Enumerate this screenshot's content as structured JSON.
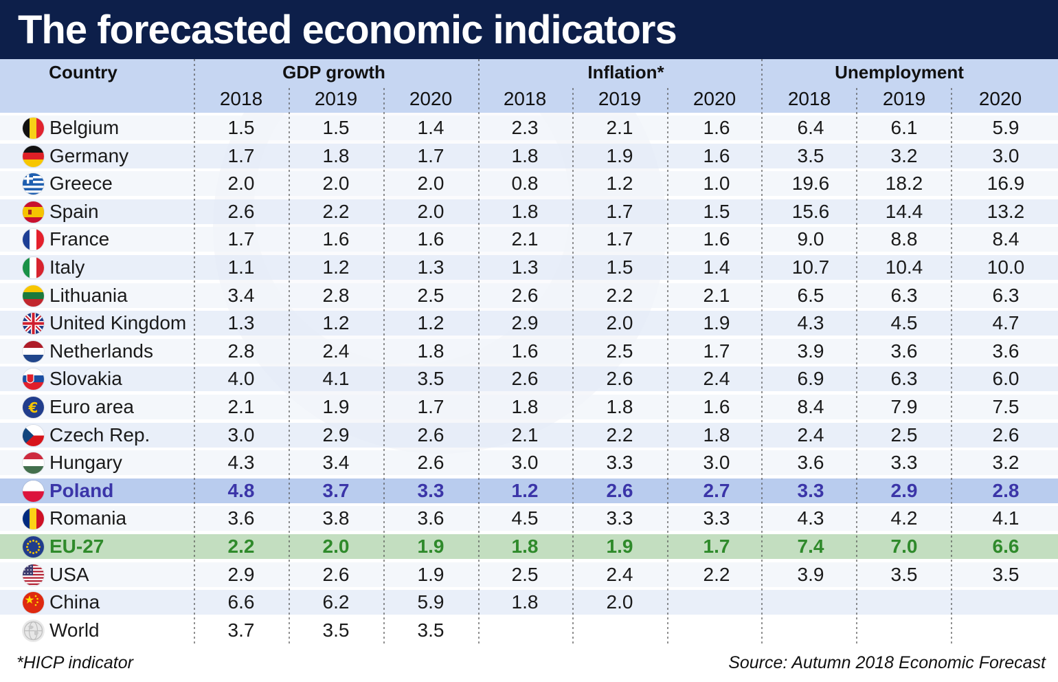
{
  "title": "The forecasted economic indicators",
  "chart_data": {
    "type": "table",
    "header": {
      "country_label": "Country",
      "groups": [
        {
          "label": "GDP growth",
          "years": [
            "2018",
            "2019",
            "2020"
          ]
        },
        {
          "label": "Inflation*",
          "years": [
            "2018",
            "2019",
            "2020"
          ]
        },
        {
          "label": "Unemployment",
          "years": [
            "2018",
            "2019",
            "2020"
          ]
        }
      ]
    },
    "rows": [
      {
        "country": "Belgium",
        "flag": "belgium-flag-icon",
        "values": [
          "1.5",
          "1.5",
          "1.4",
          "2.3",
          "2.1",
          "1.6",
          "6.4",
          "6.1",
          "5.9"
        ]
      },
      {
        "country": "Germany",
        "flag": "germany-flag-icon",
        "values": [
          "1.7",
          "1.8",
          "1.7",
          "1.8",
          "1.9",
          "1.6",
          "3.5",
          "3.2",
          "3.0"
        ]
      },
      {
        "country": "Greece",
        "flag": "greece-flag-icon",
        "values": [
          "2.0",
          "2.0",
          "2.0",
          "0.8",
          "1.2",
          "1.0",
          "19.6",
          "18.2",
          "16.9"
        ]
      },
      {
        "country": "Spain",
        "flag": "spain-flag-icon",
        "values": [
          "2.6",
          "2.2",
          "2.0",
          "1.8",
          "1.7",
          "1.5",
          "15.6",
          "14.4",
          "13.2"
        ]
      },
      {
        "country": "France",
        "flag": "france-flag-icon",
        "values": [
          "1.7",
          "1.6",
          "1.6",
          "2.1",
          "1.7",
          "1.6",
          "9.0",
          "8.8",
          "8.4"
        ]
      },
      {
        "country": "Italy",
        "flag": "italy-flag-icon",
        "values": [
          "1.1",
          "1.2",
          "1.3",
          "1.3",
          "1.5",
          "1.4",
          "10.7",
          "10.4",
          "10.0"
        ]
      },
      {
        "country": "Lithuania",
        "flag": "lithuania-flag-icon",
        "values": [
          "3.4",
          "2.8",
          "2.5",
          "2.6",
          "2.2",
          "2.1",
          "6.5",
          "6.3",
          "6.3"
        ]
      },
      {
        "country": "United Kingdom",
        "flag": "uk-flag-icon",
        "values": [
          "1.3",
          "1.2",
          "1.2",
          "2.9",
          "2.0",
          "1.9",
          "4.3",
          "4.5",
          "4.7"
        ]
      },
      {
        "country": "Netherlands",
        "flag": "netherlands-flag-icon",
        "values": [
          "2.8",
          "2.4",
          "1.8",
          "1.6",
          "2.5",
          "1.7",
          "3.9",
          "3.6",
          "3.6"
        ]
      },
      {
        "country": "Slovakia",
        "flag": "slovakia-flag-icon",
        "values": [
          "4.0",
          "4.1",
          "3.5",
          "2.6",
          "2.6",
          "2.4",
          "6.9",
          "6.3",
          "6.0"
        ]
      },
      {
        "country": "Euro area",
        "flag": "euro-icon",
        "values": [
          "2.1",
          "1.9",
          "1.7",
          "1.8",
          "1.8",
          "1.6",
          "8.4",
          "7.9",
          "7.5"
        ]
      },
      {
        "country": "Czech Rep.",
        "flag": "czech-flag-icon",
        "values": [
          "3.0",
          "2.9",
          "2.6",
          "2.1",
          "2.2",
          "1.8",
          "2.4",
          "2.5",
          "2.6"
        ]
      },
      {
        "country": "Hungary",
        "flag": "hungary-flag-icon",
        "values": [
          "4.3",
          "3.4",
          "2.6",
          "3.0",
          "3.3",
          "3.0",
          "3.6",
          "3.3",
          "3.2"
        ]
      },
      {
        "country": "Poland",
        "flag": "poland-flag-icon",
        "highlight": "poland",
        "values": [
          "4.8",
          "3.7",
          "3.3",
          "1.2",
          "2.6",
          "2.7",
          "3.3",
          "2.9",
          "2.8"
        ]
      },
      {
        "country": "Romania",
        "flag": "romania-flag-icon",
        "values": [
          "3.6",
          "3.8",
          "3.6",
          "4.5",
          "3.3",
          "3.3",
          "4.3",
          "4.2",
          "4.1"
        ]
      },
      {
        "country": "EU-27",
        "flag": "eu-flag-icon",
        "highlight": "eu",
        "values": [
          "2.2",
          "2.0",
          "1.9",
          "1.8",
          "1.9",
          "1.7",
          "7.4",
          "7.0",
          "6.6"
        ]
      },
      {
        "country": "USA",
        "flag": "usa-flag-icon",
        "values": [
          "2.9",
          "2.6",
          "1.9",
          "2.5",
          "2.4",
          "2.2",
          "3.9",
          "3.5",
          "3.5"
        ]
      },
      {
        "country": "China",
        "flag": "china-flag-icon",
        "values": [
          "6.6",
          "6.2",
          "5.9",
          "1.8",
          "2.0",
          "",
          "",
          "",
          ""
        ]
      },
      {
        "country": "World",
        "flag": "globe-icon",
        "values": [
          "3.7",
          "3.5",
          "3.5",
          "",
          "",
          "",
          "",
          "",
          ""
        ]
      }
    ]
  },
  "colors": {
    "title_bar": "#0d1f4a",
    "header": "#c6d6f2",
    "poland_text": "#3b35a8",
    "eu_text": "#2f8a2b"
  },
  "footnote": "*HICP indicator",
  "source": "Source: Autumn 2018 Economic Forecast"
}
